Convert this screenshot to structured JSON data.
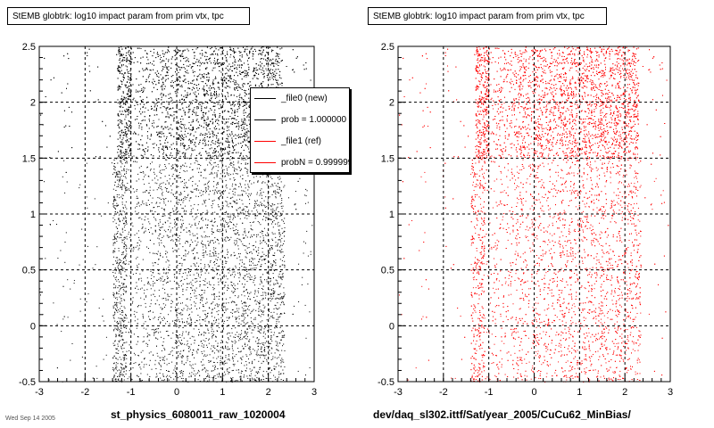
{
  "chart_data": [
    {
      "type": "scatter",
      "title": "StEMB globtrk: log10 impact param from prim vtx, tpc",
      "xlabel": "st_physics_6080011_raw_1020004",
      "ylabel": "",
      "xlim": [
        -3,
        3
      ],
      "ylim": [
        -0.5,
        2.5
      ],
      "x_ticks": [
        "-3",
        "-2",
        "-1",
        "0",
        "1",
        "2",
        "3"
      ],
      "y_ticks": [
        "-0.5",
        "0",
        "0.5",
        "1",
        "1.5",
        "2",
        "2.5"
      ],
      "grid": true,
      "color": "#000000",
      "bands": [
        {
          "y_range": [
            -0.5,
            1.5
          ],
          "x_range": [
            -1.1,
            2.35
          ],
          "density": "medium"
        },
        {
          "y_range": [
            1.5,
            2.5
          ],
          "x_range": [
            -1.0,
            2.3
          ],
          "density": "high"
        }
      ],
      "legend": {
        "placement": "top-right",
        "entries": [
          {
            "label": "_file0 (new)",
            "color": "#000000"
          },
          {
            "label": "prob = 1.000000",
            "color": "#000000"
          },
          {
            "label": "_file1 (ref)",
            "color": "#ff0000"
          },
          {
            "label": "probN = 0.999999",
            "color": "#ff0000"
          }
        ]
      }
    },
    {
      "type": "scatter",
      "title": "StEMB globtrk: log10 impact param from prim vtx, tpc",
      "xlabel": "dev/daq_sl302.ittf/Sat/year_2005/CuCu62_MinBias/",
      "ylabel": "",
      "xlim": [
        -3,
        3
      ],
      "ylim": [
        -0.5,
        2.5
      ],
      "x_ticks": [
        "-3",
        "-2",
        "-1",
        "0",
        "1",
        "2",
        "3"
      ],
      "y_ticks": [
        "-0.5",
        "0",
        "0.5",
        "1",
        "1.5",
        "2",
        "2.5"
      ],
      "grid": true,
      "color": "#ff0000",
      "bands": [
        {
          "y_range": [
            -0.5,
            1.5
          ],
          "x_range": [
            -1.1,
            2.35
          ],
          "density": "medium"
        },
        {
          "y_range": [
            1.5,
            2.5
          ],
          "x_range": [
            -1.0,
            2.3
          ],
          "density": "high"
        }
      ]
    }
  ],
  "footer_fragment": "Wed Sep 14 2005"
}
